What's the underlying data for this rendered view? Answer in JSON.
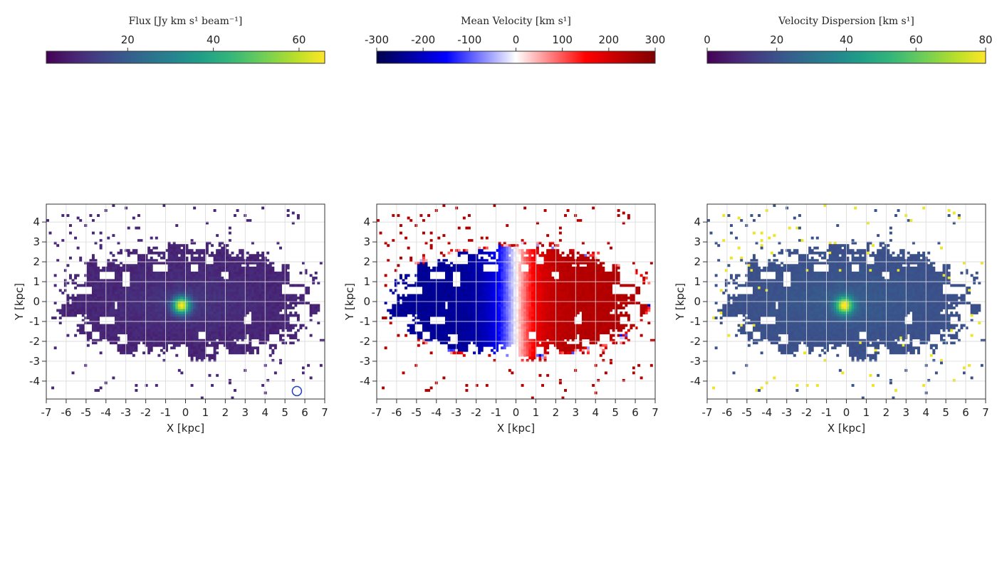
{
  "chart_data": [
    {
      "type": "heatmap",
      "map": "flux",
      "colorbar": {
        "title": "Flux [Jy km s¹ beam⁻¹]",
        "ticks": [
          20,
          40,
          60
        ],
        "range": [
          1,
          66
        ],
        "colormap": "viridis"
      },
      "xlabel": "X [kpc]",
      "ylabel": "Y [kpc]",
      "xticks": [
        -7,
        -6,
        -5,
        -4,
        -3,
        -2,
        -1,
        0,
        1,
        2,
        3,
        4,
        5,
        6,
        7
      ],
      "yticks": [
        -4,
        -3,
        -2,
        -1,
        0,
        1,
        2,
        3,
        4
      ],
      "xlim": [
        -7,
        7
      ],
      "ylim": [
        -4.9,
        4.9
      ],
      "grid": true,
      "disk": {
        "center": [
          0,
          0
        ],
        "semi_major": 6.3,
        "semi_minor": 2.6,
        "background_value": 6
      },
      "peak": {
        "x": -0.2,
        "y": -0.2,
        "value": 62
      },
      "beam": {
        "x": 5.6,
        "y": -4.5
      },
      "beam_color": "#1f3fbf"
    },
    {
      "type": "heatmap",
      "map": "velocity",
      "colorbar": {
        "title": "Mean Velocity [km s¹]",
        "ticks": [
          -300,
          -200,
          -100,
          0,
          100,
          200,
          300
        ],
        "range": [
          -300,
          300
        ],
        "colormap": "seismic"
      },
      "xlabel": "X [kpc]",
      "ylabel": "Y [kpc]",
      "xticks": [
        -7,
        -6,
        -5,
        -4,
        -3,
        -2,
        -1,
        0,
        1,
        2,
        3,
        4,
        5,
        6,
        7
      ],
      "yticks": [
        -4,
        -3,
        -2,
        -1,
        0,
        1,
        2,
        3,
        4
      ],
      "xlim": [
        -7,
        7
      ],
      "ylim": [
        -4.9,
        4.9
      ],
      "grid": true,
      "disk": {
        "center": [
          0,
          0
        ],
        "semi_major": 6.3,
        "semi_minor": 2.6,
        "v_flat": 240
      }
    },
    {
      "type": "heatmap",
      "map": "dispersion",
      "colorbar": {
        "title": "Velocity Dispersion [km s¹]",
        "ticks": [
          0,
          20,
          40,
          60,
          80
        ],
        "range": [
          0,
          80
        ],
        "colormap": "viridis"
      },
      "xlabel": "X [kpc]",
      "ylabel": "Y [kpc]",
      "xticks": [
        -7,
        -6,
        -5,
        -4,
        -3,
        -2,
        -1,
        0,
        1,
        2,
        3,
        4,
        5,
        6,
        7
      ],
      "yticks": [
        -4,
        -3,
        -2,
        -1,
        0,
        1,
        2,
        3,
        4
      ],
      "xlim": [
        -7,
        7
      ],
      "ylim": [
        -4.9,
        4.9
      ],
      "grid": true,
      "disk": {
        "center": [
          0,
          0
        ],
        "semi_major": 6.3,
        "semi_minor": 2.6,
        "background_value": 18
      },
      "peak": {
        "x": -0.1,
        "y": -0.2,
        "value": 78
      }
    }
  ]
}
